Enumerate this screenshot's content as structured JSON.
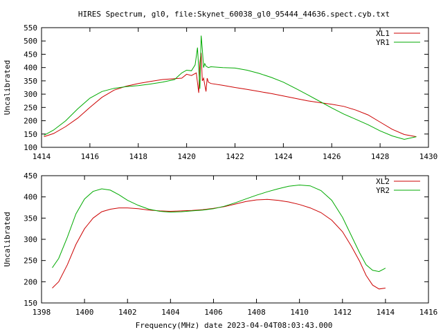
{
  "title": "HIRES Spectrum, gl0, file:Skynet_60038_gl0_95444_44636.spect.cyb.txt",
  "footer": "Frequency(MHz) date 2023-04-04T08:03:43.000",
  "colors": {
    "red": "#cc0000",
    "green": "#00aa00",
    "axis": "#000000"
  },
  "chart_data": [
    {
      "type": "line",
      "ylabel": "Uncalibrated",
      "xlim": [
        1414,
        1430
      ],
      "ylim": [
        100,
        550
      ],
      "xticks": [
        1414,
        1416,
        1418,
        1420,
        1422,
        1424,
        1426,
        1428,
        1430
      ],
      "yticks": [
        100,
        150,
        200,
        250,
        300,
        350,
        400,
        450,
        500,
        550
      ],
      "legend_position": "top-right",
      "series": [
        {
          "name": "XL1",
          "color": "#cc0000",
          "x": [
            1414.1,
            1414.5,
            1415.0,
            1415.5,
            1416.0,
            1416.5,
            1417.0,
            1417.5,
            1418.0,
            1418.5,
            1419.0,
            1419.5,
            1419.8,
            1420.0,
            1420.2,
            1420.4,
            1420.5,
            1420.55,
            1420.6,
            1420.65,
            1420.7,
            1420.8,
            1420.85,
            1420.9,
            1421.0,
            1421.5,
            1422.0,
            1422.5,
            1423.0,
            1423.5,
            1424.0,
            1424.5,
            1425.0,
            1425.5,
            1426.0,
            1426.5,
            1427.0,
            1427.5,
            1428.0,
            1428.5,
            1429.0,
            1429.5
          ],
          "y": [
            140,
            152,
            178,
            210,
            250,
            288,
            315,
            330,
            340,
            348,
            355,
            358,
            360,
            375,
            370,
            380,
            305,
            420,
            455,
            350,
            360,
            310,
            360,
            345,
            340,
            333,
            325,
            318,
            310,
            302,
            293,
            284,
            275,
            268,
            262,
            254,
            240,
            222,
            195,
            168,
            148,
            140
          ]
        },
        {
          "name": "YR1",
          "color": "#00aa00",
          "x": [
            1414.1,
            1414.5,
            1415.0,
            1415.5,
            1416.0,
            1416.5,
            1417.0,
            1417.5,
            1418.0,
            1418.5,
            1419.0,
            1419.5,
            1419.8,
            1420.0,
            1420.2,
            1420.35,
            1420.45,
            1420.55,
            1420.6,
            1420.65,
            1420.7,
            1420.75,
            1420.8,
            1420.9,
            1421.0,
            1421.5,
            1422.0,
            1422.5,
            1423.0,
            1423.5,
            1424.0,
            1424.5,
            1425.0,
            1425.5,
            1426.0,
            1426.5,
            1427.0,
            1427.5,
            1428.0,
            1428.5,
            1429.0,
            1429.5
          ],
          "y": [
            145,
            165,
            200,
            245,
            285,
            310,
            322,
            328,
            332,
            338,
            345,
            355,
            380,
            390,
            388,
            410,
            475,
            320,
            520,
            470,
            400,
            415,
            405,
            400,
            403,
            400,
            398,
            390,
            378,
            363,
            345,
            322,
            298,
            273,
            248,
            225,
            205,
            185,
            162,
            143,
            130,
            140
          ]
        }
      ]
    },
    {
      "type": "line",
      "ylabel": "Uncalibrated",
      "xlim": [
        1398,
        1416
      ],
      "ylim": [
        150,
        450
      ],
      "xticks": [
        1398,
        1400,
        1402,
        1404,
        1406,
        1408,
        1410,
        1412,
        1414,
        1416
      ],
      "yticks": [
        150,
        200,
        250,
        300,
        350,
        400,
        450
      ],
      "legend_position": "top-right",
      "series": [
        {
          "name": "XL2",
          "color": "#cc0000",
          "x": [
            1398.5,
            1398.8,
            1399.2,
            1399.6,
            1400.0,
            1400.4,
            1400.8,
            1401.2,
            1401.6,
            1402.0,
            1402.5,
            1403.0,
            1403.5,
            1404.0,
            1404.5,
            1405.0,
            1405.5,
            1406.0,
            1406.5,
            1407.0,
            1407.5,
            1408.0,
            1408.5,
            1409.0,
            1409.5,
            1410.0,
            1410.5,
            1411.0,
            1411.5,
            1412.0,
            1412.4,
            1412.8,
            1413.1,
            1413.4,
            1413.7,
            1414.0
          ],
          "y": [
            185,
            200,
            240,
            288,
            325,
            350,
            365,
            371,
            374,
            374,
            372,
            369,
            367,
            366,
            367,
            368,
            370,
            373,
            377,
            383,
            389,
            393,
            394,
            392,
            388,
            382,
            374,
            363,
            345,
            318,
            285,
            248,
            215,
            192,
            183,
            185
          ]
        },
        {
          "name": "YR2",
          "color": "#00aa00",
          "x": [
            1398.5,
            1398.8,
            1399.2,
            1399.6,
            1400.0,
            1400.4,
            1400.8,
            1401.2,
            1401.6,
            1402.0,
            1402.5,
            1403.0,
            1403.5,
            1404.0,
            1404.5,
            1405.0,
            1405.5,
            1406.0,
            1406.5,
            1407.0,
            1407.5,
            1408.0,
            1408.5,
            1409.0,
            1409.5,
            1410.0,
            1410.5,
            1411.0,
            1411.5,
            1412.0,
            1412.4,
            1412.8,
            1413.1,
            1413.4,
            1413.7,
            1414.0
          ],
          "y": [
            233,
            255,
            305,
            360,
            395,
            413,
            419,
            416,
            405,
            392,
            380,
            371,
            366,
            364,
            365,
            367,
            369,
            372,
            378,
            386,
            395,
            404,
            412,
            419,
            425,
            428,
            426,
            415,
            392,
            352,
            310,
            268,
            240,
            227,
            224,
            232
          ]
        }
      ]
    }
  ]
}
